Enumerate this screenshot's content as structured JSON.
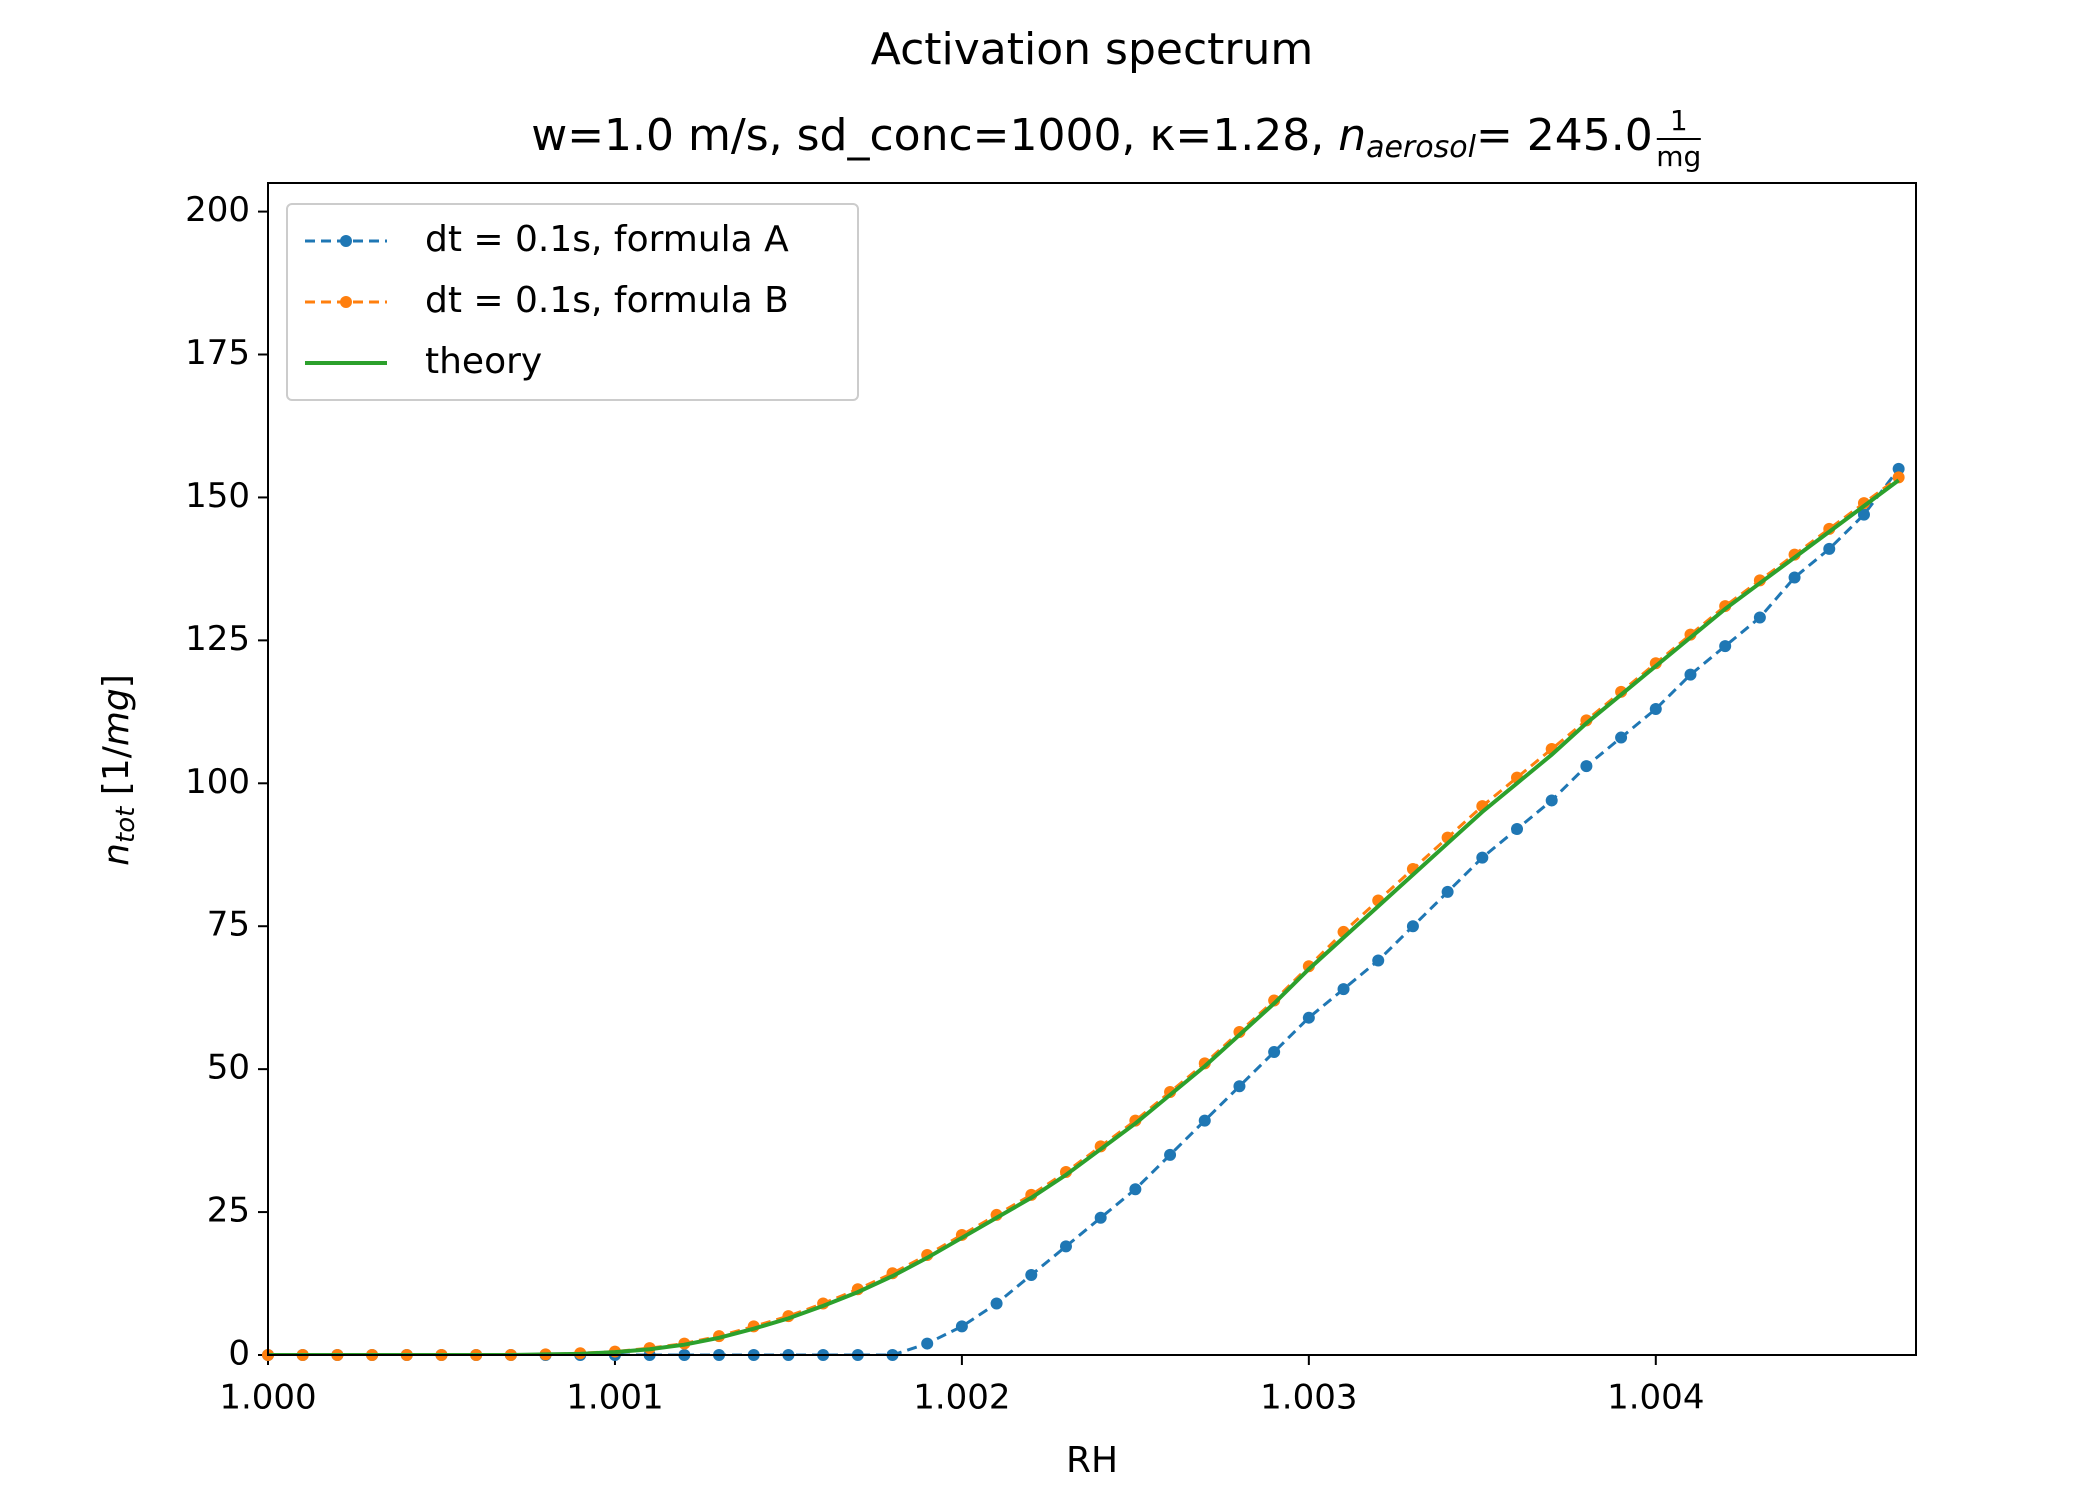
{
  "chart_data": {
    "type": "line",
    "title": "Activation spectrum",
    "subtitle": [
      "w=1.0 m/s, sd_conc=1000, κ=1.28, ",
      "n",
      "aerosol",
      "= 245.0 ",
      "1",
      "mg"
    ],
    "xlabel": "RH",
    "ylabel": [
      "n",
      "tot",
      " [1/",
      "mg",
      "]"
    ],
    "x": [
      1.0,
      1.0001,
      1.0002,
      1.0003,
      1.0004,
      1.0005,
      1.0006,
      1.0007,
      1.0008,
      1.0009,
      1.001,
      1.0011,
      1.0012,
      1.0013,
      1.0014,
      1.0015,
      1.0016,
      1.0017,
      1.0018,
      1.0019,
      1.002,
      1.0021,
      1.0022,
      1.0023,
      1.0024,
      1.0025,
      1.0026,
      1.0027,
      1.0028,
      1.0029,
      1.003,
      1.0031,
      1.0032,
      1.0033,
      1.0034,
      1.0035,
      1.0036,
      1.0037,
      1.0038,
      1.0039,
      1.004,
      1.0041,
      1.0042,
      1.0043,
      1.0044,
      1.0045,
      1.0046,
      1.0047
    ],
    "series": [
      {
        "name": "dt = 0.1s, formula A",
        "color": "#1f77b4",
        "style": "dashed-dots",
        "values": [
          0,
          0,
          0,
          0,
          0,
          0,
          0,
          0,
          0,
          0,
          0,
          0,
          0,
          0,
          0,
          0,
          0,
          0,
          0,
          2,
          5,
          9,
          14,
          19,
          24,
          29,
          35,
          41,
          47,
          53,
          59,
          64,
          69,
          75,
          81,
          87,
          92,
          97,
          103,
          108,
          113,
          119,
          124,
          129,
          136,
          141,
          147,
          155
        ]
      },
      {
        "name": "dt = 0.1s, formula B",
        "color": "#ff7f0e",
        "style": "dashed-dots",
        "values": [
          0,
          0,
          0,
          0,
          0,
          0,
          0,
          0,
          0.1,
          0.3,
          0.6,
          1.2,
          2,
          3.3,
          5,
          6.8,
          9,
          11.5,
          14.3,
          17.5,
          21,
          24.5,
          28,
          32,
          36.5,
          41,
          46,
          51,
          56.5,
          62,
          68,
          74,
          79.5,
          85,
          90.5,
          96,
          101,
          106,
          111,
          116,
          121,
          126,
          131,
          135.5,
          140,
          144.5,
          149,
          153.5
        ]
      },
      {
        "name": "theory",
        "color": "#2ca02c",
        "style": "solid",
        "values": [
          0,
          0,
          0,
          0,
          0,
          0,
          0,
          0,
          0.1,
          0.2,
          0.5,
          1,
          1.8,
          3,
          4.6,
          6.4,
          8.6,
          11,
          13.8,
          17,
          20.5,
          24,
          27.5,
          31.5,
          36,
          40.5,
          45.5,
          50.5,
          56,
          61.5,
          67.5,
          73,
          78.5,
          84,
          89.5,
          95,
          100,
          105,
          110.5,
          115.5,
          120.5,
          125.5,
          130.5,
          135,
          139.5,
          144,
          148.5,
          153
        ]
      }
    ],
    "xlim": [
      1.0,
      1.00475
    ],
    "ylim": [
      0,
      205
    ],
    "xticks": [
      {
        "value": 1.0,
        "label": "1.000"
      },
      {
        "value": 1.001,
        "label": "1.001"
      },
      {
        "value": 1.002,
        "label": "1.002"
      },
      {
        "value": 1.003,
        "label": "1.003"
      },
      {
        "value": 1.004,
        "label": "1.004"
      }
    ],
    "yticks": [
      0,
      25,
      50,
      75,
      100,
      125,
      150,
      175,
      200
    ],
    "grid": false,
    "legend": "upper left"
  }
}
